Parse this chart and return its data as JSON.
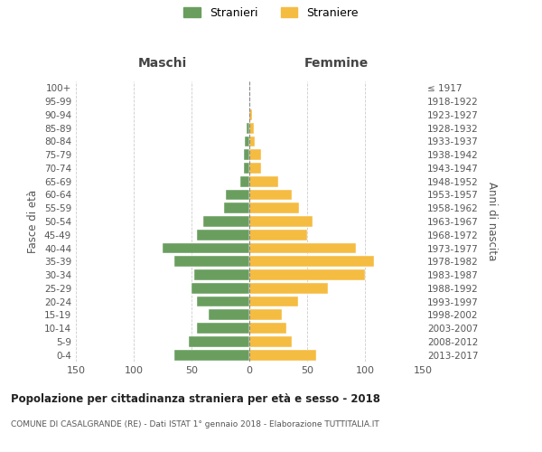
{
  "age_groups": [
    "0-4",
    "5-9",
    "10-14",
    "15-19",
    "20-24",
    "25-29",
    "30-34",
    "35-39",
    "40-44",
    "45-49",
    "50-54",
    "55-59",
    "60-64",
    "65-69",
    "70-74",
    "75-79",
    "80-84",
    "85-89",
    "90-94",
    "95-99",
    "100+"
  ],
  "birth_years": [
    "2013-2017",
    "2008-2012",
    "2003-2007",
    "1998-2002",
    "1993-1997",
    "1988-1992",
    "1983-1987",
    "1978-1982",
    "1973-1977",
    "1968-1972",
    "1963-1967",
    "1958-1962",
    "1953-1957",
    "1948-1952",
    "1943-1947",
    "1938-1942",
    "1933-1937",
    "1928-1932",
    "1923-1927",
    "1918-1922",
    "≤ 1917"
  ],
  "maschi": [
    65,
    52,
    45,
    35,
    45,
    50,
    48,
    65,
    75,
    45,
    40,
    22,
    20,
    8,
    5,
    5,
    4,
    2,
    0,
    0,
    0
  ],
  "femmine": [
    58,
    37,
    32,
    28,
    42,
    68,
    100,
    108,
    92,
    50,
    55,
    43,
    37,
    25,
    10,
    10,
    5,
    4,
    2,
    0,
    0
  ],
  "male_color": "#6a9e5f",
  "female_color": "#f5bc42",
  "title": "Popolazione per cittadinanza straniera per età e sesso - 2018",
  "subtitle": "COMUNE DI CASALGRANDE (RE) - Dati ISTAT 1° gennaio 2018 - Elaborazione TUTTITALIA.IT",
  "xlabel_left": "Maschi",
  "xlabel_right": "Femmine",
  "ylabel_left": "Fasce di età",
  "ylabel_right": "Anni di nascita",
  "legend_stranieri": "Stranieri",
  "legend_straniere": "Straniere",
  "xlim": 150,
  "background_color": "#ffffff",
  "grid_color": "#cccccc"
}
